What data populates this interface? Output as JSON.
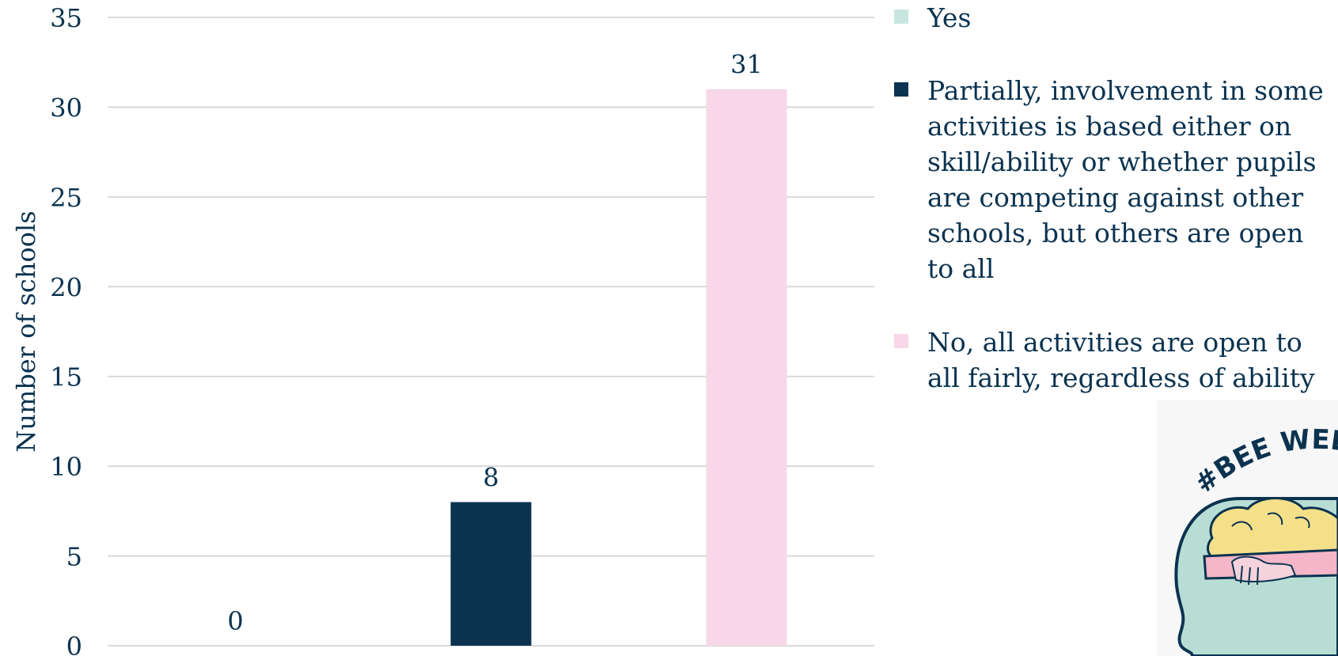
{
  "chart_data": {
    "type": "bar",
    "categories": [
      "Yes",
      "Partially, involvement in some activities is based either on skill/ability or whether pupils are competing against other schools, but others are open to all",
      "No, all activities are open to all fairly, regardless of ability"
    ],
    "values": [
      0,
      8,
      31
    ],
    "colors": [
      "#c7e6df",
      "#0b3350",
      "#f7d7e8"
    ],
    "title": "",
    "xlabel": "",
    "ylabel": "Number of schools",
    "ylim": [
      0,
      35
    ],
    "yticks": [
      0,
      5,
      10,
      15,
      20,
      25,
      30,
      35
    ],
    "grid": true,
    "legend_position": "right"
  },
  "legend": {
    "items": [
      {
        "label": "Yes",
        "color": "#c7e6df"
      },
      {
        "label": "Partially, involvement in some activities is based either on skill/ability or whether pupils are competing against other schools, but others are open to all",
        "color": "#0b3350"
      },
      {
        "label": "No, all activities are open to all fairly, regardless of ability",
        "color": "#f7d7e8"
      }
    ]
  },
  "logo": {
    "text": "#BEE WELL",
    "icon": "head-brain-hands-logo"
  }
}
